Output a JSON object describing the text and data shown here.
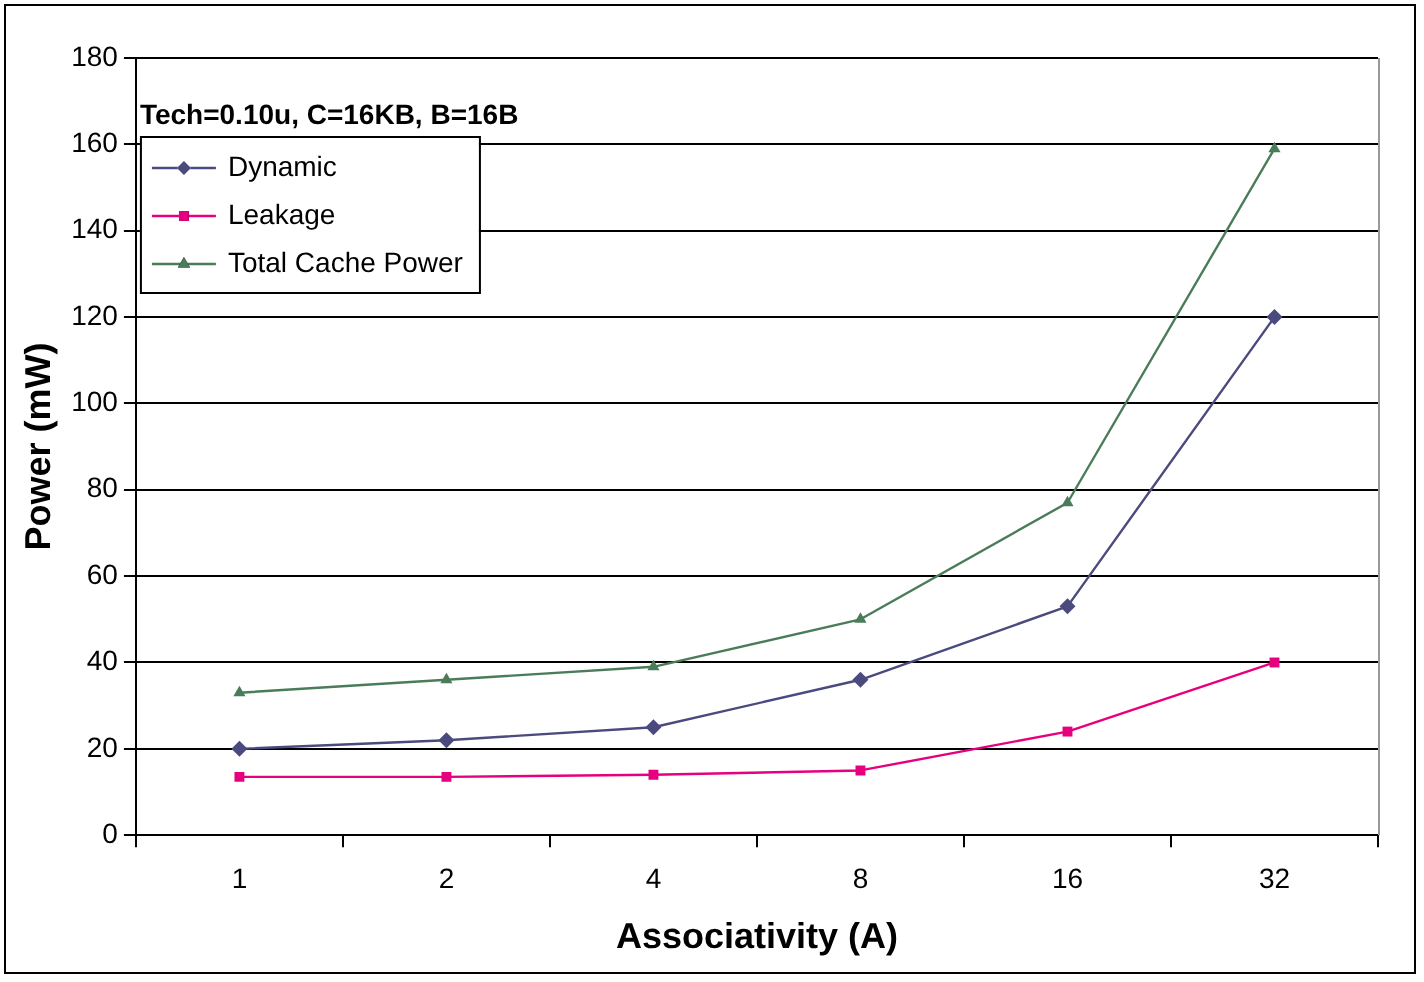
{
  "chart_data": {
    "type": "line",
    "xlabel": "Associativity (A)",
    "ylabel": "Power (mW)",
    "annotations": [
      "Tech=0.10u, C=16KB, B=16B"
    ],
    "categories": [
      "1",
      "2",
      "4",
      "8",
      "16",
      "32"
    ],
    "series": [
      {
        "name": "Dynamic",
        "color": "#4b4a7e",
        "marker": "diamond",
        "values": [
          20,
          22,
          25,
          36,
          53,
          120
        ]
      },
      {
        "name": "Leakage",
        "color": "#e6007e",
        "marker": "square",
        "values": [
          13.5,
          13.5,
          14,
          15,
          24,
          40
        ]
      },
      {
        "name": "Total Cache Power",
        "color": "#4a7c5a",
        "marker": "triangle",
        "values": [
          33,
          36,
          39,
          50,
          77,
          159
        ]
      }
    ],
    "ylim": [
      0,
      180
    ],
    "yticks": [
      0,
      20,
      40,
      60,
      80,
      100,
      120,
      140,
      160,
      180
    ],
    "grid": "y",
    "legend": "top left",
    "line_style": "solid"
  }
}
